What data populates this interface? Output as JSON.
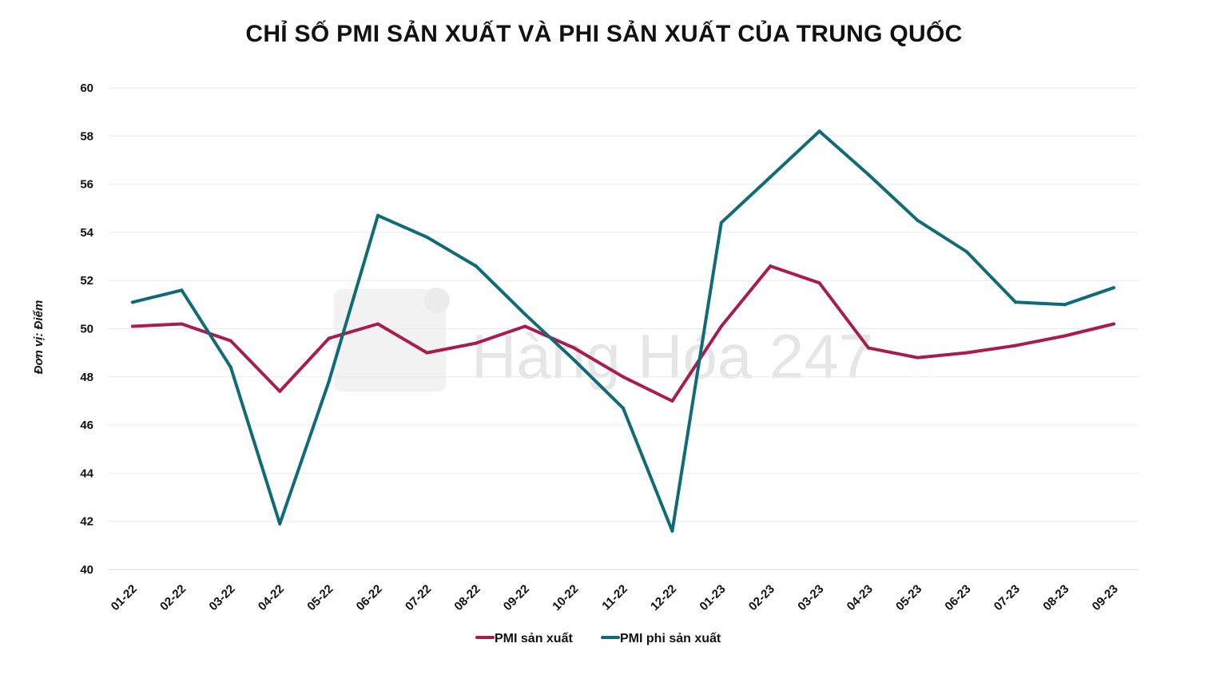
{
  "chart_data": {
    "type": "line",
    "title": "CHỈ SỐ PMI SẢN XUẤT VÀ PHI SẢN XUẤT CỦA TRUNG QUỐC",
    "ylabel": "Đơn vị: Điểm",
    "xlabel": "",
    "ylim": [
      40,
      60
    ],
    "yticks": [
      "40",
      "42",
      "44",
      "46",
      "48",
      "50",
      "52",
      "54",
      "56",
      "58",
      "60"
    ],
    "categories": [
      "01-22",
      "02-22",
      "03-22",
      "04-22",
      "05-22",
      "06-22",
      "07-22",
      "08-22",
      "09-22",
      "10-22",
      "11-22",
      "12-22",
      "01-23",
      "02-23",
      "03-23",
      "04-23",
      "05-23",
      "06-23",
      "07-23",
      "08-23",
      "09-23"
    ],
    "series": [
      {
        "name": "PMI sản xuất",
        "color": "#a81c4f",
        "values": [
          50.1,
          50.2,
          49.5,
          47.4,
          49.6,
          50.2,
          49.0,
          49.4,
          50.1,
          49.2,
          48.0,
          47.0,
          50.1,
          52.6,
          51.9,
          49.2,
          48.8,
          49.0,
          49.3,
          49.7,
          50.2
        ]
      },
      {
        "name": "PMI phi sản xuất",
        "color": "#0f6b78",
        "values": [
          51.1,
          51.6,
          48.4,
          41.9,
          47.8,
          54.7,
          53.8,
          52.6,
          50.6,
          48.7,
          46.7,
          41.6,
          54.4,
          56.3,
          58.2,
          56.4,
          54.5,
          53.2,
          51.1,
          51.0,
          51.7
        ]
      }
    ],
    "grid": true,
    "legend": "bottom-center",
    "watermark": "Hàng Hóa 247"
  }
}
